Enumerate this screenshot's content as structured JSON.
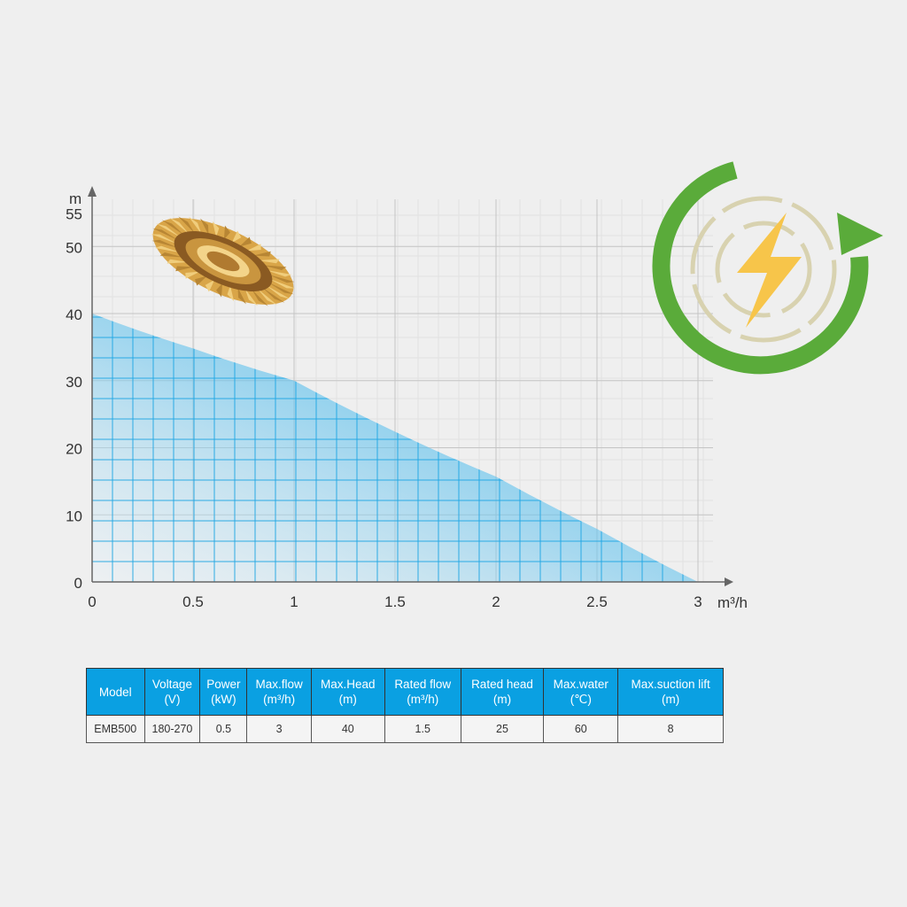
{
  "chart_data": {
    "type": "area",
    "xlabel": "m³/h",
    "ylabel": "m",
    "xlim": [
      0,
      3
    ],
    "ylim": [
      0,
      55
    ],
    "x_ticks": [
      "0",
      "0.5",
      "1",
      "1.5",
      "2",
      "2.5",
      "3"
    ],
    "y_ticks": [
      "0",
      "10",
      "20",
      "30",
      "40",
      "50",
      "55"
    ],
    "grid": true,
    "x": [
      0,
      0.5,
      1,
      1.5,
      2,
      2.5,
      3
    ],
    "y": [
      40,
      34.8,
      30,
      22.4,
      15.7,
      7.9,
      0
    ],
    "colors": {
      "fill": "#12a4e4",
      "grid": "#bdbdbd"
    }
  },
  "table": {
    "headers": [
      [
        "Model",
        ""
      ],
      [
        "Voltage",
        "(V)"
      ],
      [
        "Power",
        "(kW)"
      ],
      [
        "Max.flow",
        "(m³/h)"
      ],
      [
        "Max.Head",
        "(m)"
      ],
      [
        "Rated flow",
        "(m³/h)"
      ],
      [
        "Rated head",
        "(m)"
      ],
      [
        "Max.water",
        "(℃)"
      ],
      [
        "Max.suction lift",
        "(m)"
      ]
    ],
    "rows": [
      [
        "EMB500",
        "180-270",
        "0.5",
        "3",
        "40",
        "1.5",
        "25",
        "60",
        "8"
      ]
    ]
  },
  "icons": [
    "impeller-image",
    "energy-cycle-icon"
  ]
}
